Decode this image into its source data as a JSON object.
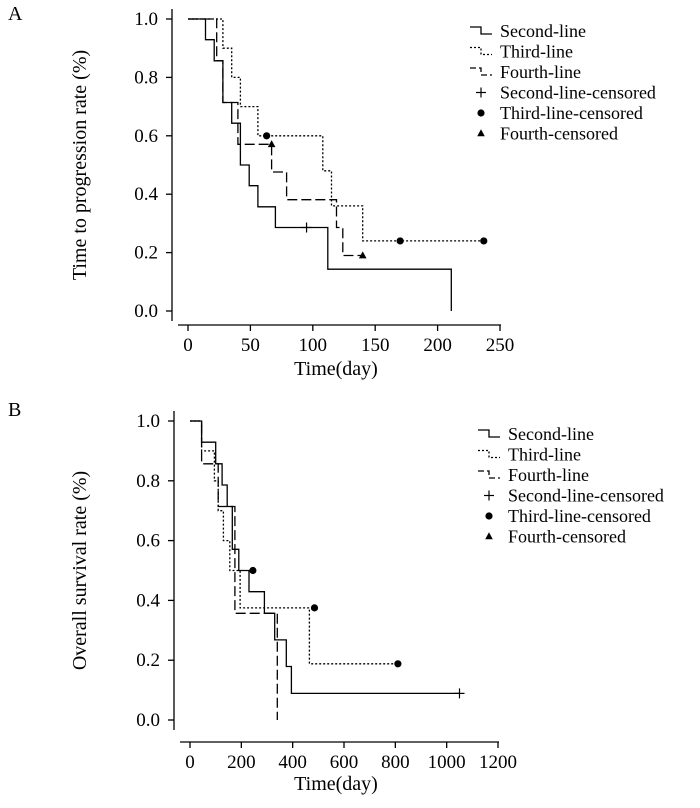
{
  "chart_data": [
    {
      "type": "line",
      "subtype": "kaplan-meier",
      "panel_label": "A",
      "xlabel": "Time(day)",
      "ylabel": "Time to progression rate (%)",
      "xlim": [
        0,
        250
      ],
      "ylim": [
        0,
        1.0
      ],
      "xticks": [
        "0",
        "50",
        "100",
        "150",
        "200",
        "250"
      ],
      "yticks": [
        "0.0",
        "0.2",
        "0.4",
        "0.6",
        "0.8",
        "1.0"
      ],
      "xtick_values": [
        0,
        50,
        100,
        150,
        200,
        250
      ],
      "ytick_values": [
        0,
        0.2,
        0.4,
        0.6,
        0.8,
        1.0
      ],
      "legend_position": "top-right",
      "legend": [
        {
          "label": "Second-line",
          "symbol": "solid-step"
        },
        {
          "label": "Third-line",
          "symbol": "dotted-step"
        },
        {
          "label": "Fourth-line",
          "symbol": "dashed-step"
        },
        {
          "label": "Second-line-censored",
          "symbol": "plus"
        },
        {
          "label": "Third-line-censored",
          "symbol": "circle"
        },
        {
          "label": "Fourth-censored",
          "symbol": "triangle"
        }
      ],
      "series": [
        {
          "name": "Second-line",
          "style": "solid",
          "x": [
            0,
            14,
            14,
            21,
            21,
            28,
            28,
            35,
            35,
            42,
            42,
            49,
            49,
            56,
            56,
            70,
            70,
            112,
            112,
            211,
            211
          ],
          "y": [
            1.0,
            1.0,
            0.929,
            0.929,
            0.857,
            0.857,
            0.714,
            0.714,
            0.643,
            0.643,
            0.5,
            0.5,
            0.429,
            0.429,
            0.357,
            0.357,
            0.286,
            0.286,
            0.143,
            0.143,
            0.0
          ],
          "censored": [
            {
              "x": 95,
              "y": 0.286
            }
          ],
          "censor_marker": "plus"
        },
        {
          "name": "Third-line",
          "style": "dotted",
          "x": [
            0,
            28,
            28,
            35,
            35,
            42,
            42,
            56,
            56,
            108,
            108,
            115,
            115,
            140,
            140,
            237
          ],
          "y": [
            1.0,
            1.0,
            0.9,
            0.9,
            0.8,
            0.8,
            0.7,
            0.7,
            0.6,
            0.6,
            0.48,
            0.48,
            0.36,
            0.36,
            0.24,
            0.24
          ],
          "censored": [
            {
              "x": 63,
              "y": 0.6
            },
            {
              "x": 170,
              "y": 0.24
            },
            {
              "x": 237,
              "y": 0.24
            }
          ],
          "censor_marker": "circle"
        },
        {
          "name": "Fourth-line",
          "style": "dashed",
          "x": [
            0,
            23,
            23,
            28,
            28,
            40,
            40,
            67,
            67,
            79,
            79,
            119,
            119,
            124,
            124,
            140
          ],
          "y": [
            1.0,
            1.0,
            0.857,
            0.857,
            0.714,
            0.714,
            0.571,
            0.571,
            0.476,
            0.476,
            0.381,
            0.381,
            0.286,
            0.286,
            0.19,
            0.19
          ],
          "censored": [
            {
              "x": 67,
              "y": 0.571
            },
            {
              "x": 140,
              "y": 0.19
            }
          ],
          "censor_marker": "triangle"
        }
      ]
    },
    {
      "type": "line",
      "subtype": "kaplan-meier",
      "panel_label": "B",
      "xlabel": "Time(day)",
      "ylabel": "Overall survival rate (%)",
      "xlim": [
        0,
        1200
      ],
      "ylim": [
        0,
        1.0
      ],
      "xticks": [
        "0",
        "200",
        "400",
        "600",
        "800",
        "1000",
        "1200"
      ],
      "yticks": [
        "0.0",
        "0.2",
        "0.4",
        "0.6",
        "0.8",
        "1.0"
      ],
      "xtick_values": [
        0,
        200,
        400,
        600,
        800,
        1000,
        1200
      ],
      "ytick_values": [
        0,
        0.2,
        0.4,
        0.6,
        0.8,
        1.0
      ],
      "legend_position": "top-right",
      "legend": [
        {
          "label": "Second-line",
          "symbol": "solid-step"
        },
        {
          "label": "Third-line",
          "symbol": "dotted-step"
        },
        {
          "label": "Fourth-line",
          "symbol": "dashed-step"
        },
        {
          "label": "Second-line-censored",
          "symbol": "plus"
        },
        {
          "label": "Third-line-censored",
          "symbol": "circle"
        },
        {
          "label": "Fourth-censored",
          "symbol": "triangle"
        }
      ],
      "series": [
        {
          "name": "Second-line",
          "style": "solid",
          "x": [
            0,
            45,
            45,
            100,
            100,
            125,
            125,
            145,
            145,
            165,
            165,
            190,
            190,
            230,
            230,
            290,
            290,
            330,
            330,
            375,
            375,
            395,
            395,
            1050
          ],
          "y": [
            1.0,
            1.0,
            0.929,
            0.929,
            0.857,
            0.857,
            0.786,
            0.786,
            0.714,
            0.714,
            0.571,
            0.571,
            0.5,
            0.5,
            0.429,
            0.429,
            0.357,
            0.357,
            0.268,
            0.268,
            0.179,
            0.179,
            0.089,
            0.089
          ],
          "censored": [
            {
              "x": 1050,
              "y": 0.089
            }
          ],
          "censor_marker": "plus"
        },
        {
          "name": "Third-line",
          "style": "dotted",
          "x": [
            0,
            45,
            45,
            95,
            95,
            110,
            110,
            130,
            130,
            155,
            155,
            180,
            180,
            195,
            195,
            465,
            465,
            675,
            675,
            810
          ],
          "y": [
            1.0,
            1.0,
            0.9,
            0.9,
            0.8,
            0.8,
            0.7,
            0.7,
            0.6,
            0.6,
            0.5,
            0.5,
            0.5,
            0.5,
            0.375,
            0.375,
            0.188,
            0.188,
            0.188,
            0.188
          ],
          "censored": [
            {
              "x": 245,
              "y": 0.5
            },
            {
              "x": 485,
              "y": 0.375
            },
            {
              "x": 810,
              "y": 0.188
            }
          ],
          "censor_marker": "circle"
        },
        {
          "name": "Fourth-line",
          "style": "dashed",
          "x": [
            0,
            45,
            45,
            110,
            110,
            175,
            175,
            330,
            330,
            340,
            340
          ],
          "y": [
            1.0,
            1.0,
            0.857,
            0.857,
            0.714,
            0.714,
            0.357,
            0.357,
            0.357,
            0.357,
            0.0
          ],
          "censored": [],
          "censor_marker": "triangle"
        }
      ]
    }
  ]
}
